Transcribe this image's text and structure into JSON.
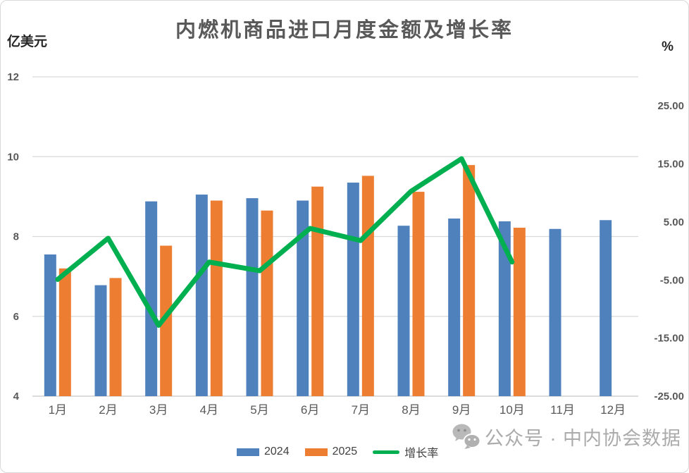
{
  "chart_data": {
    "type": "bar",
    "subtype": "bar+line combo",
    "title": "内燃机商品进口月度金额及增长率",
    "left_axis": {
      "label": "亿美元",
      "min": 4,
      "max": 12,
      "ticks": [
        4,
        6,
        8,
        10,
        12
      ]
    },
    "right_axis": {
      "label": "%",
      "min": -25,
      "max": 30,
      "ticks": [
        25,
        15,
        5,
        -5,
        -15,
        -25
      ],
      "tick_decimals": 2
    },
    "categories": [
      "1月",
      "2月",
      "3月",
      "4月",
      "5月",
      "6月",
      "7月",
      "8月",
      "9月",
      "10月",
      "11月",
      "12月"
    ],
    "series": [
      {
        "name": "2024",
        "type": "bar",
        "axis": "left",
        "color": "#4F81BD",
        "values": [
          7.55,
          6.78,
          8.88,
          9.05,
          8.96,
          8.9,
          9.35,
          8.27,
          8.45,
          8.38,
          8.19,
          8.41
        ]
      },
      {
        "name": "2025",
        "type": "bar",
        "axis": "left",
        "color": "#ED7D31",
        "values": [
          7.2,
          6.96,
          7.77,
          8.9,
          8.65,
          9.25,
          9.52,
          9.12,
          9.79,
          8.22,
          null,
          null
        ]
      },
      {
        "name": "增长率",
        "type": "line",
        "axis": "right",
        "color": "#00B050",
        "values": [
          -4.9,
          2.2,
          -12.8,
          -1.9,
          -3.4,
          3.9,
          1.8,
          10.3,
          15.9,
          -1.9,
          null,
          null
        ]
      }
    ],
    "grid": true,
    "legend_position": "bottom"
  },
  "watermark": {
    "text": "公众号 · 中内协会数据",
    "icon": "wechat-icon"
  },
  "colors": {
    "grid": "#D9D9D9",
    "baseline": "#C6C6C6",
    "axis_text": "#595959",
    "title_text": "#595959",
    "watermark_text": "#ABABAB",
    "background": "#FFFFFF",
    "border": "#D9D9D9"
  }
}
